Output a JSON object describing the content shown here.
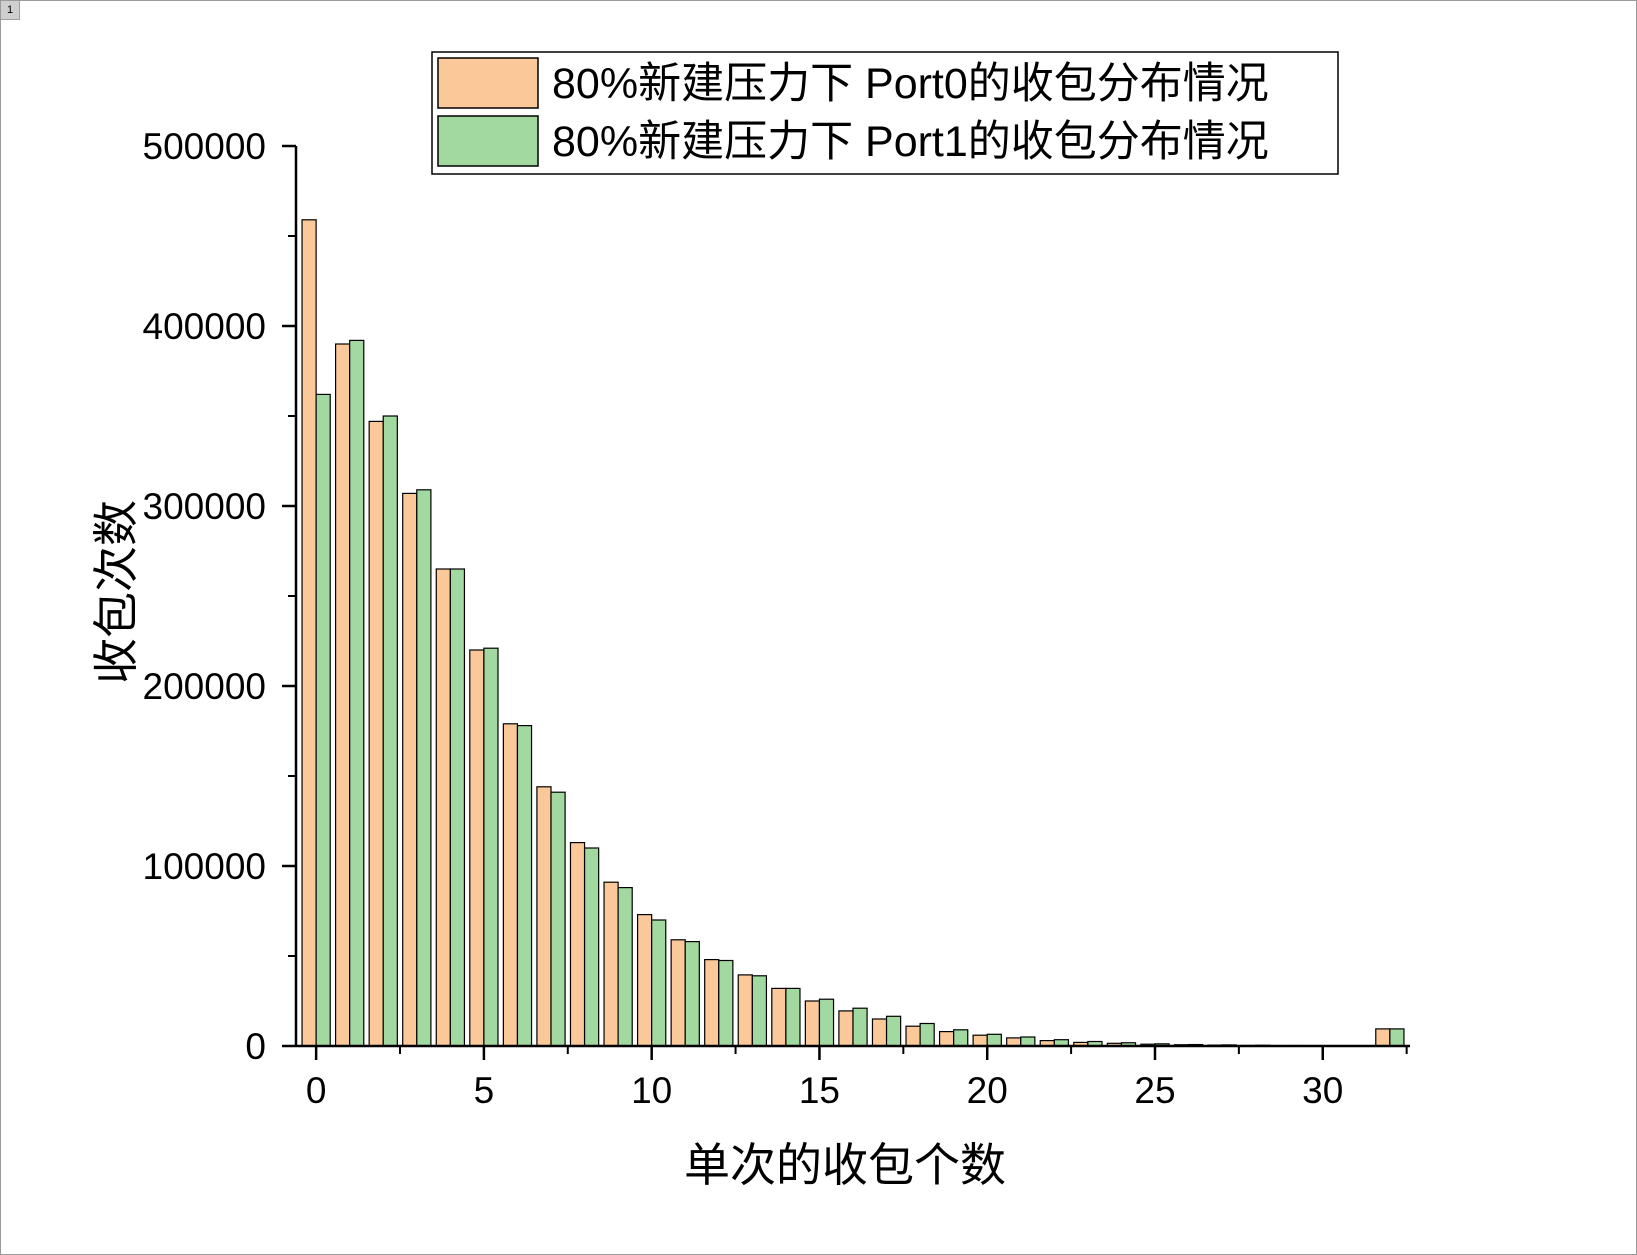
{
  "page_tab_label": "1",
  "chart_data": {
    "type": "bar",
    "title": "",
    "xlabel": "单次的收包个数",
    "ylabel": "收包次数",
    "xlim": [
      -0.6,
      32.6
    ],
    "ylim": [
      0,
      500000
    ],
    "x_ticks": [
      0,
      5,
      10,
      15,
      20,
      25,
      30
    ],
    "y_ticks": [
      0,
      100000,
      200000,
      300000,
      400000,
      500000
    ],
    "grid": false,
    "legend_position": "top-right",
    "categories": [
      0,
      1,
      2,
      3,
      4,
      5,
      6,
      7,
      8,
      9,
      10,
      11,
      12,
      13,
      14,
      15,
      16,
      17,
      18,
      19,
      20,
      21,
      22,
      23,
      24,
      25,
      26,
      27,
      28,
      29,
      30,
      31,
      32
    ],
    "series": [
      {
        "name": "80%新建压力下 Port0的收包分布情况",
        "color": "#FBC899",
        "values": [
          459000,
          390000,
          347000,
          307000,
          265000,
          220000,
          179000,
          144000,
          113000,
          91000,
          73000,
          59000,
          48000,
          39500,
          32000,
          25000,
          19500,
          15000,
          11000,
          8000,
          6000,
          4500,
          3000,
          2000,
          1500,
          1000,
          700,
          500,
          300,
          200,
          100,
          50,
          9500
        ]
      },
      {
        "name": "80%新建压力下 Port1的收包分布情况",
        "color": "#A2D9A0",
        "values": [
          362000,
          392000,
          350000,
          309000,
          265000,
          221000,
          178000,
          141000,
          110000,
          88000,
          70000,
          58000,
          47500,
          39000,
          32000,
          26000,
          21000,
          16500,
          12500,
          9000,
          6500,
          5000,
          3500,
          2500,
          1800,
          1200,
          800,
          600,
          400,
          250,
          150,
          80,
          9500
        ]
      }
    ]
  }
}
